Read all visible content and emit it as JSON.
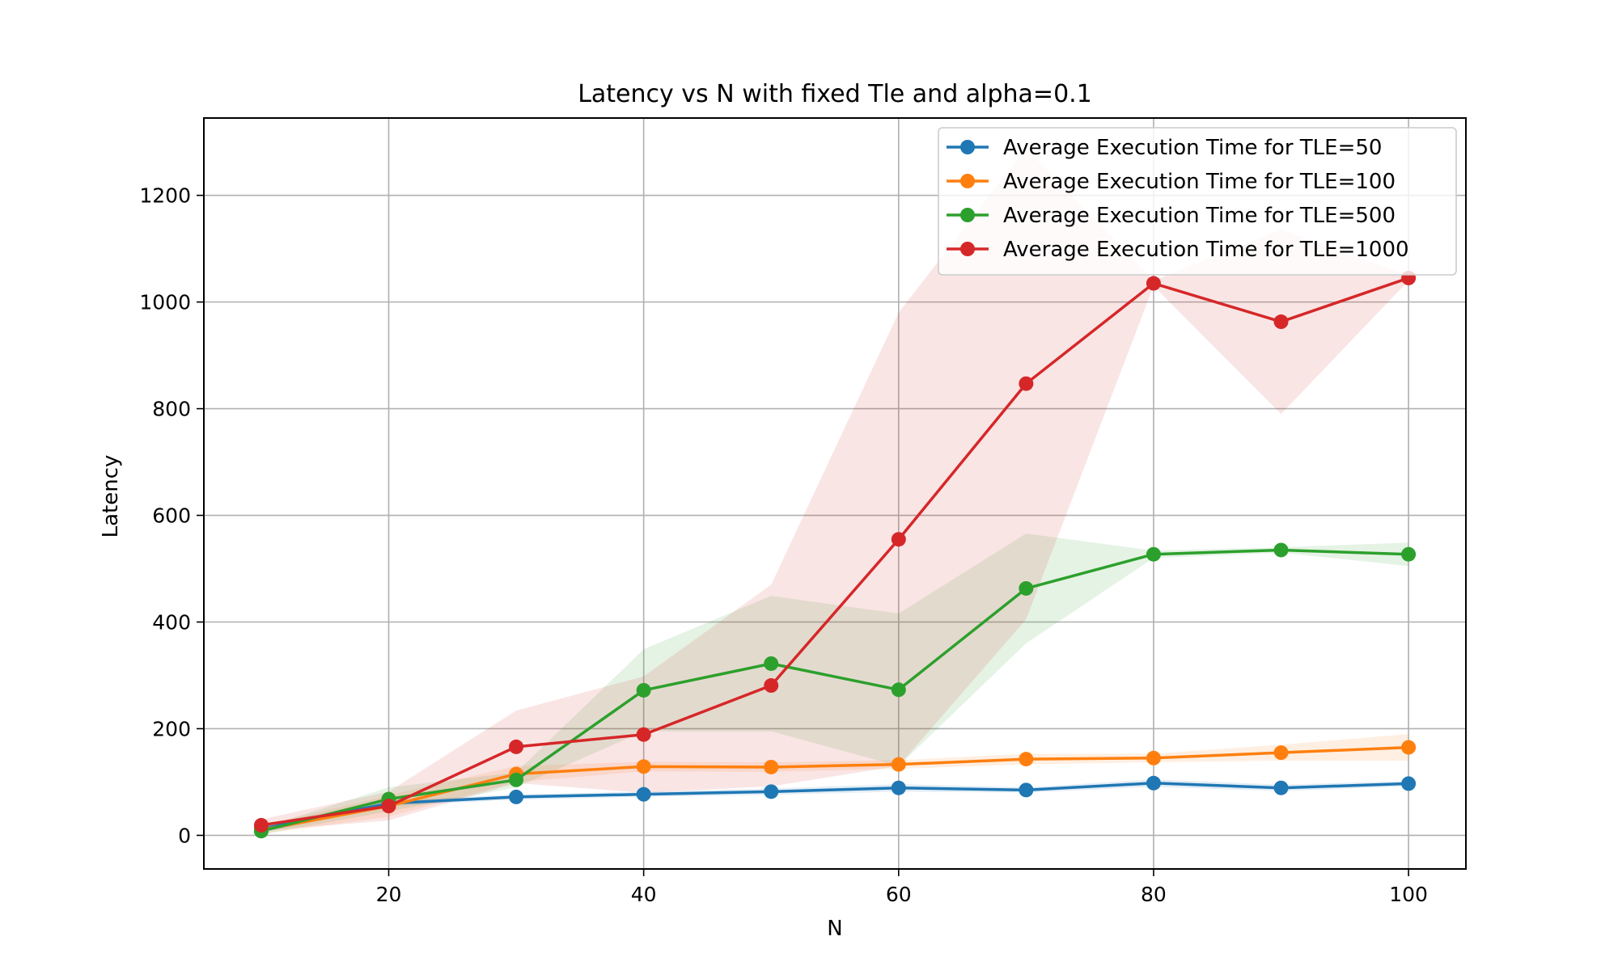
{
  "chart_data": {
    "type": "line",
    "title": "Latency vs N with fixed Tle and alpha=0.1",
    "xlabel": "N",
    "ylabel": "Latency",
    "xlim": [
      5.5,
      104.5
    ],
    "ylim": [
      -63,
      1345
    ],
    "xticks": [
      20,
      40,
      60,
      80,
      100
    ],
    "yticks": [
      0,
      200,
      400,
      600,
      800,
      1000,
      1200
    ],
    "grid": true,
    "legend_position": "upper right",
    "x": [
      10,
      20,
      30,
      40,
      50,
      60,
      70,
      80,
      90,
      100
    ],
    "series": [
      {
        "name": "Average Execution Time for TLE=50",
        "color": "#1f77b4",
        "values": [
          12,
          60,
          72,
          77,
          82,
          89,
          85,
          98,
          89,
          97
        ],
        "lower": [
          5,
          55,
          67,
          72,
          76,
          82,
          80,
          91,
          83,
          92
        ],
        "upper": [
          19,
          65,
          77,
          82,
          88,
          96,
          90,
          105,
          95,
          102
        ]
      },
      {
        "name": "Average Execution Time for TLE=100",
        "color": "#ff7f0e",
        "values": [
          10,
          55,
          115,
          129,
          128,
          133,
          143,
          145,
          155,
          165
        ],
        "lower": [
          2,
          35,
          100,
          120,
          119,
          125,
          133,
          137,
          140,
          140
        ],
        "upper": [
          18,
          75,
          130,
          138,
          137,
          141,
          153,
          153,
          170,
          190
        ]
      },
      {
        "name": "Average Execution Time for TLE=500",
        "color": "#2ca02c",
        "values": [
          8,
          68,
          104,
          272,
          322,
          273,
          463,
          527,
          535,
          527
        ],
        "lower": [
          2,
          45,
          90,
          195,
          195,
          130,
          360,
          520,
          530,
          505
        ],
        "upper": [
          14,
          90,
          118,
          349,
          449,
          416,
          566,
          534,
          540,
          549
        ]
      },
      {
        "name": "Average Execution Time for TLE=1000",
        "color": "#d62728",
        "values": [
          19,
          55,
          166,
          189,
          281,
          555,
          847,
          1035,
          963,
          1045
        ],
        "lower": [
          8,
          28,
          98,
          80,
          92,
          130,
          405,
          1030,
          790,
          1040
        ],
        "upper": [
          30,
          82,
          234,
          298,
          470,
          980,
          1289,
          1040,
          1136,
          1050
        ]
      }
    ]
  }
}
